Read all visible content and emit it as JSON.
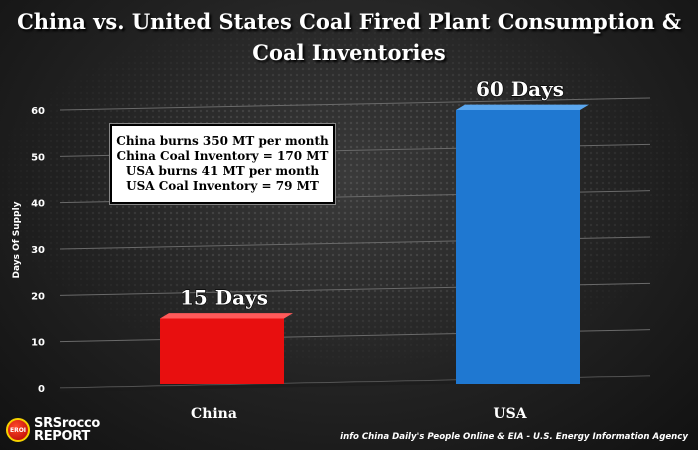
{
  "title": {
    "line1": "China vs. United States Coal Fired Plant Consumption &",
    "line2": "Coal Inventories"
  },
  "infobox": {
    "lines": [
      "China burns 350 MT per month",
      "China Coal Inventory = 170 MT",
      "USA burns 41 MT per month",
      "USA Coal Inventory = 79 MT"
    ]
  },
  "logo": {
    "badge": "EROI",
    "line1": "SRSrocco",
    "line2": "REPORT"
  },
  "source": "info China Daily's People Online & EIA - U.S. Energy Information Agency",
  "colors": {
    "china_bar": "#e80f0f",
    "usa_bar": "#1f78d1",
    "text": "#ffffff",
    "gridline": "#6a6a6a"
  },
  "chart_data": {
    "type": "bar",
    "title": "China vs. United States Coal Fired Plant Consumption & Coal Inventories",
    "xlabel": "",
    "ylabel": "Days Of Supply",
    "categories": [
      "China",
      "USA"
    ],
    "values": [
      15,
      60
    ],
    "data_labels": [
      "15 Days",
      "60 Days"
    ],
    "ylim": [
      0,
      60
    ],
    "yticks": [
      "0",
      "10",
      "20",
      "30",
      "40",
      "50",
      "60"
    ],
    "grid": true,
    "style": "3d"
  }
}
